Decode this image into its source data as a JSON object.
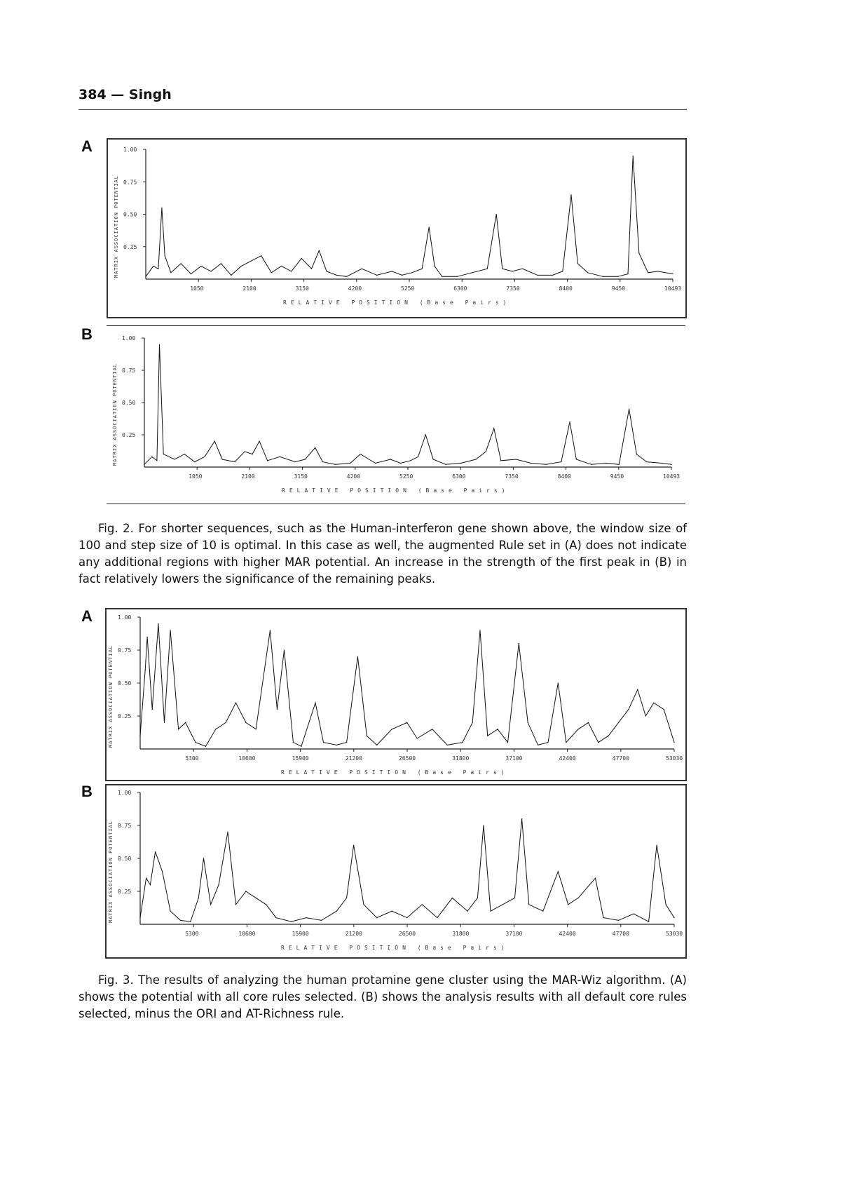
{
  "header": {
    "page_number": "384",
    "author": "Singh",
    "separator": " — "
  },
  "figures": [
    {
      "id": "fig2",
      "panels": [
        "A",
        "B"
      ],
      "caption": {
        "prefix": "Fig. 2.",
        "text": " For shorter sequences, such as the Human-interferon gene shown above, the window size of 100 and step size of 10 is optimal. In this case as well, the augmented Rule set in (A) does not indicate any additional regions with higher MAR potential. An increase in the strength of the first peak in (B) in fact relatively lowers the significance of the remaining peaks."
      }
    },
    {
      "id": "fig3",
      "panels": [
        "A",
        "B"
      ],
      "caption": {
        "prefix": "Fig. 3.",
        "text": " The results of analyzing the human protamine gene cluster using the MAR-Wiz algorithm. (A) shows the potential with all core rules selected. (B) shows the analysis results with all default core rules selected, minus the ORI and AT-Richness rule."
      }
    }
  ],
  "chart_data": [
    {
      "panel": "Fig. 2 A",
      "type": "line",
      "xlabel": "RELATIVE POSITION (Base Pairs)",
      "ylabel": "MATRIX ASSOCIATION POTENTIAL",
      "xlim": [
        0,
        10493
      ],
      "ylim": [
        0,
        1.0
      ],
      "yticks": [
        "0.25",
        "0.50",
        "0.75",
        "1.00"
      ],
      "xticks": [
        "1050",
        "2100",
        "3150",
        "4200",
        "5250",
        "6300",
        "7350",
        "8400",
        "9450",
        "10493"
      ],
      "x": [
        0,
        150,
        250,
        320,
        380,
        500,
        700,
        900,
        1100,
        1300,
        1500,
        1700,
        1900,
        2100,
        2300,
        2500,
        2700,
        2900,
        3100,
        3300,
        3450,
        3600,
        3800,
        4000,
        4300,
        4600,
        4900,
        5100,
        5300,
        5500,
        5640,
        5750,
        5900,
        6200,
        6500,
        6800,
        6980,
        7100,
        7300,
        7500,
        7800,
        8100,
        8300,
        8470,
        8600,
        8800,
        9100,
        9400,
        9600,
        9700,
        9820,
        10000,
        10200,
        10493
      ],
      "y": [
        0.02,
        0.1,
        0.08,
        0.55,
        0.18,
        0.05,
        0.12,
        0.04,
        0.1,
        0.06,
        0.12,
        0.03,
        0.1,
        0.14,
        0.18,
        0.05,
        0.1,
        0.06,
        0.16,
        0.08,
        0.22,
        0.06,
        0.03,
        0.02,
        0.08,
        0.03,
        0.06,
        0.03,
        0.05,
        0.08,
        0.4,
        0.1,
        0.02,
        0.02,
        0.05,
        0.08,
        0.5,
        0.08,
        0.06,
        0.08,
        0.03,
        0.03,
        0.06,
        0.65,
        0.12,
        0.05,
        0.02,
        0.02,
        0.04,
        0.95,
        0.2,
        0.05,
        0.06,
        0.04
      ]
    },
    {
      "panel": "Fig. 2 B",
      "type": "line",
      "xlabel": "RELATIVE POSITION (Base Pairs)",
      "ylabel": "MATRIX ASSOCIATION POTENTIAL",
      "xlim": [
        0,
        10493
      ],
      "ylim": [
        0,
        1.0
      ],
      "yticks": [
        "0.25",
        "0.50",
        "0.75",
        "1.00"
      ],
      "xticks": [
        "1050",
        "2100",
        "3150",
        "4200",
        "5250",
        "6300",
        "7350",
        "8400",
        "9450",
        "10493"
      ],
      "x": [
        0,
        150,
        250,
        300,
        380,
        600,
        800,
        1000,
        1200,
        1400,
        1550,
        1800,
        2000,
        2150,
        2290,
        2450,
        2700,
        3000,
        3200,
        3400,
        3550,
        3800,
        4100,
        4300,
        4600,
        4900,
        5100,
        5300,
        5450,
        5600,
        5750,
        6000,
        6300,
        6600,
        6800,
        6960,
        7100,
        7400,
        7700,
        8000,
        8300,
        8470,
        8600,
        8900,
        9200,
        9450,
        9650,
        9800,
        10000,
        10300,
        10493
      ],
      "y": [
        0.02,
        0.08,
        0.05,
        0.95,
        0.1,
        0.06,
        0.1,
        0.04,
        0.08,
        0.2,
        0.06,
        0.04,
        0.12,
        0.1,
        0.2,
        0.05,
        0.08,
        0.04,
        0.06,
        0.15,
        0.04,
        0.02,
        0.03,
        0.1,
        0.03,
        0.06,
        0.03,
        0.05,
        0.08,
        0.25,
        0.06,
        0.02,
        0.03,
        0.06,
        0.12,
        0.3,
        0.05,
        0.06,
        0.03,
        0.02,
        0.04,
        0.35,
        0.06,
        0.02,
        0.03,
        0.02,
        0.45,
        0.1,
        0.04,
        0.03,
        0.02
      ]
    },
    {
      "panel": "Fig. 3 A",
      "type": "line",
      "xlabel": "RELATIVE POSITION (Base Pairs)",
      "ylabel": "MATRIX ASSOCIATION POTENTIAL",
      "xlim": [
        0,
        53030
      ],
      "ylim": [
        0,
        1.0
      ],
      "yticks": [
        "0.25",
        "0.50",
        "0.75",
        "1.00"
      ],
      "xticks": [
        "5300",
        "10600",
        "15900",
        "21200",
        "26500",
        "31800",
        "37100",
        "42400",
        "47700",
        "53030"
      ],
      "x": [
        0,
        500,
        700,
        1200,
        1800,
        2400,
        3000,
        3800,
        4500,
        5500,
        6500,
        7500,
        8500,
        9500,
        10500,
        11500,
        12900,
        13600,
        14300,
        15200,
        16000,
        17400,
        18200,
        19500,
        20500,
        21600,
        22500,
        23500,
        25000,
        26500,
        27500,
        29000,
        30500,
        32000,
        33000,
        33750,
        34500,
        35500,
        36500,
        37600,
        38500,
        39500,
        40500,
        41500,
        42300,
        43500,
        44500,
        45500,
        46500,
        47500,
        48500,
        49400,
        50200,
        51000,
        52000,
        53030
      ],
      "y": [
        0.1,
        0.6,
        0.85,
        0.3,
        0.95,
        0.2,
        0.9,
        0.15,
        0.2,
        0.05,
        0.02,
        0.15,
        0.2,
        0.35,
        0.2,
        0.15,
        0.9,
        0.3,
        0.75,
        0.05,
        0.02,
        0.35,
        0.05,
        0.03,
        0.05,
        0.7,
        0.1,
        0.03,
        0.15,
        0.2,
        0.08,
        0.15,
        0.03,
        0.05,
        0.2,
        0.9,
        0.1,
        0.15,
        0.05,
        0.8,
        0.2,
        0.03,
        0.05,
        0.5,
        0.05,
        0.15,
        0.2,
        0.05,
        0.1,
        0.2,
        0.3,
        0.45,
        0.25,
        0.35,
        0.3,
        0.05
      ]
    },
    {
      "panel": "Fig. 3 B",
      "type": "line",
      "xlabel": "RELATIVE POSITION (Base Pairs)",
      "ylabel": "MATRIX ASSOCIATION POTENTIAL",
      "xlim": [
        0,
        53030
      ],
      "ylim": [
        0,
        1.0
      ],
      "yticks": [
        "0.25",
        "0.50",
        "0.75",
        "1.00"
      ],
      "xticks": [
        "5300",
        "10600",
        "15900",
        "21200",
        "26500",
        "31800",
        "37100",
        "42400",
        "47700",
        "53030"
      ],
      "x": [
        0,
        600,
        1000,
        1500,
        2200,
        3000,
        4000,
        5000,
        5800,
        6300,
        7000,
        7800,
        8700,
        9500,
        10500,
        11500,
        12500,
        13500,
        15000,
        16500,
        18000,
        19500,
        20500,
        21200,
        22200,
        23500,
        25000,
        26500,
        28000,
        29500,
        31000,
        32500,
        33500,
        34100,
        34800,
        36000,
        37200,
        37900,
        38600,
        40000,
        41500,
        42500,
        43500,
        45200,
        46000,
        47500,
        49000,
        50500,
        51300,
        52200,
        53030
      ],
      "y": [
        0.05,
        0.35,
        0.3,
        0.55,
        0.4,
        0.1,
        0.03,
        0.02,
        0.2,
        0.5,
        0.15,
        0.3,
        0.7,
        0.15,
        0.25,
        0.2,
        0.15,
        0.05,
        0.02,
        0.05,
        0.03,
        0.1,
        0.2,
        0.6,
        0.15,
        0.05,
        0.1,
        0.05,
        0.15,
        0.05,
        0.2,
        0.1,
        0.2,
        0.75,
        0.1,
        0.15,
        0.2,
        0.8,
        0.15,
        0.1,
        0.4,
        0.15,
        0.2,
        0.35,
        0.05,
        0.03,
        0.08,
        0.02,
        0.6,
        0.15,
        0.05
      ]
    }
  ]
}
